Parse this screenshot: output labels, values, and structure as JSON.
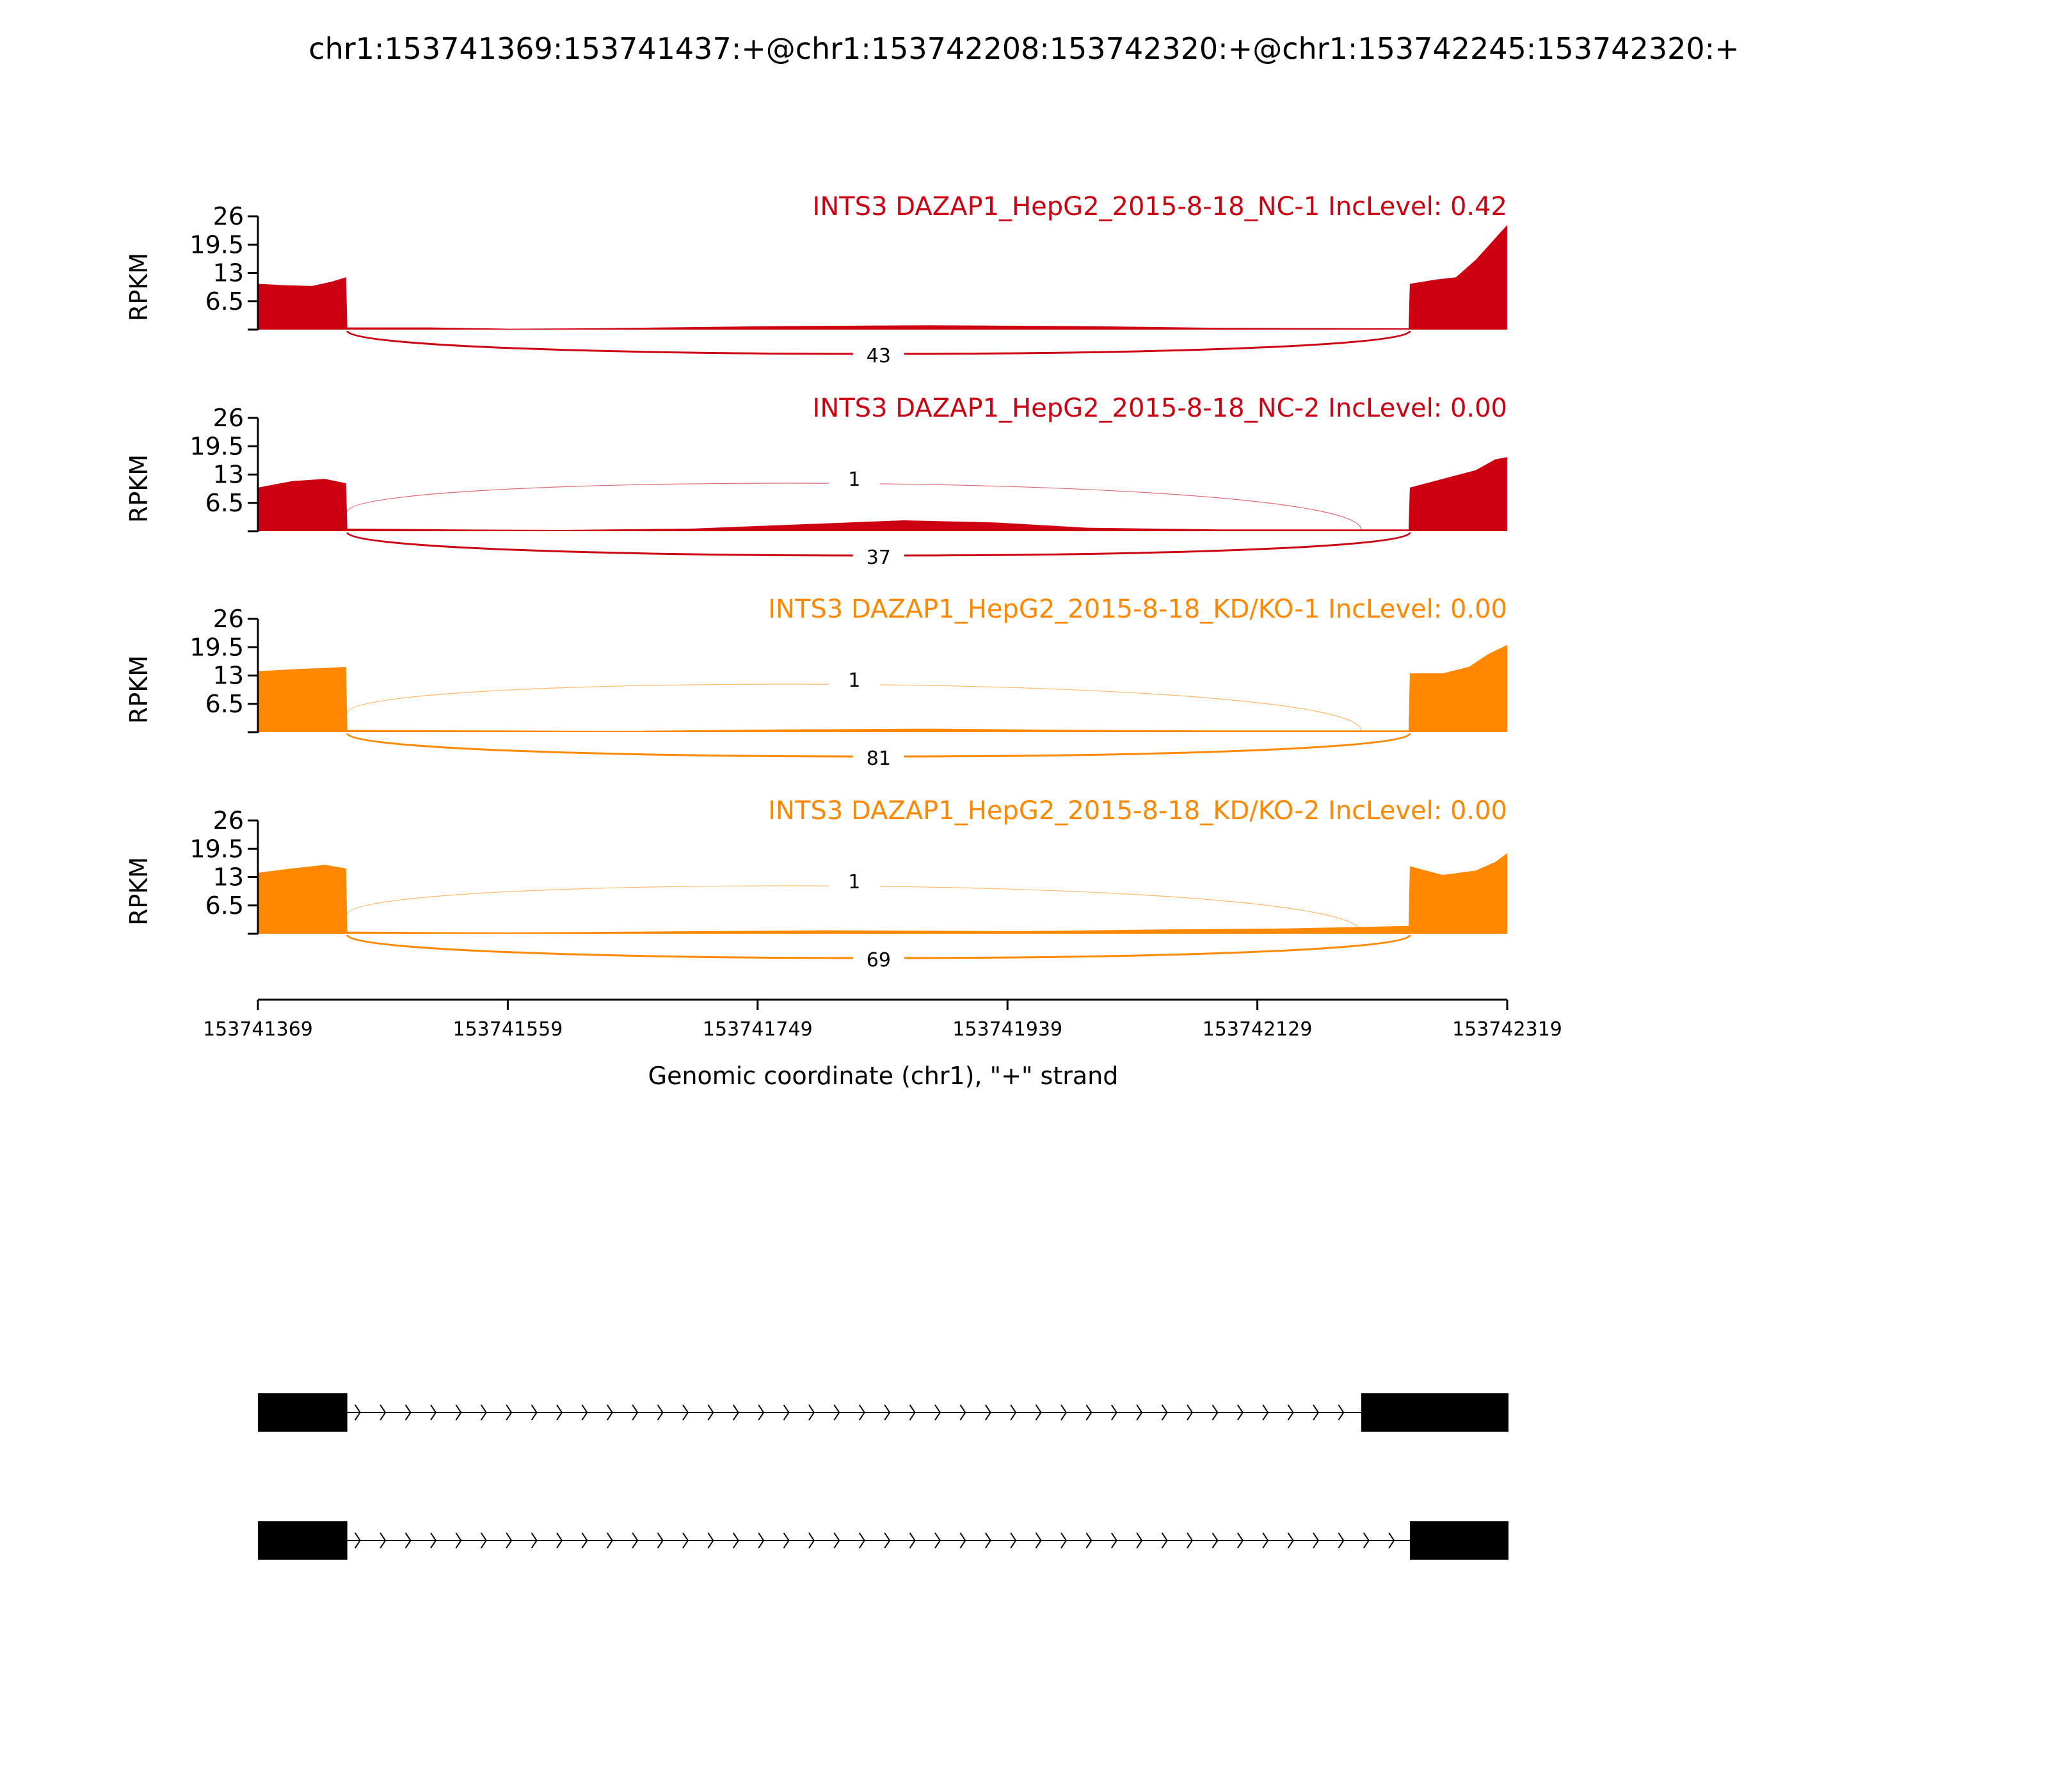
{
  "chart_data": {
    "type": "area",
    "title": "chr1:153741369:153741437:+@chr1:153742208:153742320:+@chr1:153742245:153742320:+",
    "xlabel": "Genomic coordinate (chr1), \"+\" strand",
    "ylabel": "RPKM",
    "xlim": [
      153741369,
      153742319
    ],
    "ylim": [
      0,
      26
    ],
    "y_ticks": [
      "6.5",
      "13",
      "19.5",
      "26"
    ],
    "x_ticks": [
      "153741369",
      "153741559",
      "153741749",
      "153741939",
      "153742129",
      "153742319"
    ],
    "grid": false,
    "exons": [
      {
        "start": 153741369,
        "end": 153741437
      },
      {
        "start": 153742208,
        "end": 153742320
      },
      {
        "start": 153742245,
        "end": 153742320
      }
    ],
    "tracks": [
      {
        "label": "INTS3 DAZAP1_HepG2_2015-8-18_NC-1 IncLevel: 0.42",
        "color": "#CC0011",
        "coverage": [
          {
            "x": 153741369,
            "y": 10.5
          },
          {
            "x": 153741390,
            "y": 10.2
          },
          {
            "x": 153741410,
            "y": 10.0
          },
          {
            "x": 153741425,
            "y": 11.0
          },
          {
            "x": 153741436,
            "y": 12.0
          },
          {
            "x": 153741437,
            "y": 0.5
          },
          {
            "x": 153741500,
            "y": 0.5
          },
          {
            "x": 153741560,
            "y": 0.2
          },
          {
            "x": 153741620,
            "y": 0.3
          },
          {
            "x": 153741760,
            "y": 0.8
          },
          {
            "x": 153741880,
            "y": 1.0
          },
          {
            "x": 153742000,
            "y": 0.8
          },
          {
            "x": 153742100,
            "y": 0.4
          },
          {
            "x": 153742244,
            "y": 0.3
          },
          {
            "x": 153742245,
            "y": 10.5
          },
          {
            "x": 153742265,
            "y": 11.5
          },
          {
            "x": 153742280,
            "y": 12.0
          },
          {
            "x": 153742295,
            "y": 16.0
          },
          {
            "x": 153742310,
            "y": 21.0
          },
          {
            "x": 153742319,
            "y": 24.0
          }
        ],
        "junctions": [
          {
            "from": 153741437,
            "to": 153742245,
            "count": "43",
            "side": "below"
          }
        ]
      },
      {
        "label": "INTS3 DAZAP1_HepG2_2015-8-18_NC-2 IncLevel: 0.00",
        "color": "#CC0011",
        "coverage": [
          {
            "x": 153741369,
            "y": 10.0
          },
          {
            "x": 153741395,
            "y": 11.5
          },
          {
            "x": 153741420,
            "y": 12.0
          },
          {
            "x": 153741436,
            "y": 11.0
          },
          {
            "x": 153741437,
            "y": 0.6
          },
          {
            "x": 153741520,
            "y": 0.4
          },
          {
            "x": 153741600,
            "y": 0.3
          },
          {
            "x": 153741700,
            "y": 0.6
          },
          {
            "x": 153741860,
            "y": 2.5
          },
          {
            "x": 153741930,
            "y": 2.0
          },
          {
            "x": 153742000,
            "y": 0.8
          },
          {
            "x": 153742100,
            "y": 0.4
          },
          {
            "x": 153742244,
            "y": 0.4
          },
          {
            "x": 153742245,
            "y": 10.0
          },
          {
            "x": 153742270,
            "y": 12.0
          },
          {
            "x": 153742295,
            "y": 14.0
          },
          {
            "x": 153742310,
            "y": 16.5
          },
          {
            "x": 153742319,
            "y": 17.0
          }
        ],
        "junctions": [
          {
            "from": 153741437,
            "to": 153742208,
            "count": "1",
            "side": "above"
          },
          {
            "from": 153741437,
            "to": 153742245,
            "count": "37",
            "side": "below"
          }
        ]
      },
      {
        "label": "INTS3 DAZAP1_HepG2_2015-8-18_KD/KO-1 IncLevel: 0.00",
        "color": "#FF8800",
        "coverage": [
          {
            "x": 153741369,
            "y": 14.0
          },
          {
            "x": 153741400,
            "y": 14.5
          },
          {
            "x": 153741425,
            "y": 14.8
          },
          {
            "x": 153741436,
            "y": 15.0
          },
          {
            "x": 153741437,
            "y": 0.5
          },
          {
            "x": 153741550,
            "y": 0.4
          },
          {
            "x": 153741650,
            "y": 0.3
          },
          {
            "x": 153741760,
            "y": 0.6
          },
          {
            "x": 153741880,
            "y": 0.8
          },
          {
            "x": 153742000,
            "y": 0.5
          },
          {
            "x": 153742100,
            "y": 0.4
          },
          {
            "x": 153742244,
            "y": 0.4
          },
          {
            "x": 153742245,
            "y": 13.5
          },
          {
            "x": 153742270,
            "y": 13.5
          },
          {
            "x": 153742290,
            "y": 15.0
          },
          {
            "x": 153742305,
            "y": 18.0
          },
          {
            "x": 153742319,
            "y": 20.0
          }
        ],
        "junctions": [
          {
            "from": 153741437,
            "to": 153742208,
            "count": "1",
            "side": "above"
          },
          {
            "from": 153741437,
            "to": 153742245,
            "count": "81",
            "side": "below"
          }
        ]
      },
      {
        "label": "INTS3 DAZAP1_HepG2_2015-8-18_KD/KO-2 IncLevel: 0.00",
        "color": "#FF8800",
        "coverage": [
          {
            "x": 153741369,
            "y": 14.0
          },
          {
            "x": 153741395,
            "y": 15.0
          },
          {
            "x": 153741420,
            "y": 15.8
          },
          {
            "x": 153741436,
            "y": 15.0
          },
          {
            "x": 153741437,
            "y": 0.5
          },
          {
            "x": 153741560,
            "y": 0.3
          },
          {
            "x": 153741660,
            "y": 0.5
          },
          {
            "x": 153741800,
            "y": 0.8
          },
          {
            "x": 153741950,
            "y": 0.6
          },
          {
            "x": 153742060,
            "y": 1.0
          },
          {
            "x": 153742150,
            "y": 1.2
          },
          {
            "x": 153742244,
            "y": 1.8
          },
          {
            "x": 153742245,
            "y": 15.5
          },
          {
            "x": 153742270,
            "y": 13.5
          },
          {
            "x": 153742295,
            "y": 14.5
          },
          {
            "x": 153742310,
            "y": 16.5
          },
          {
            "x": 153742319,
            "y": 18.5
          }
        ],
        "junctions": [
          {
            "from": 153741437,
            "to": 153742208,
            "count": "1",
            "side": "above"
          },
          {
            "from": 153741437,
            "to": 153742245,
            "count": "69",
            "side": "below"
          }
        ]
      }
    ],
    "isoforms": [
      {
        "exons": [
          [
            153741369,
            153741437
          ],
          [
            153742208,
            153742320
          ]
        ]
      },
      {
        "exons": [
          [
            153741369,
            153741437
          ],
          [
            153742245,
            153742320
          ]
        ]
      }
    ]
  }
}
